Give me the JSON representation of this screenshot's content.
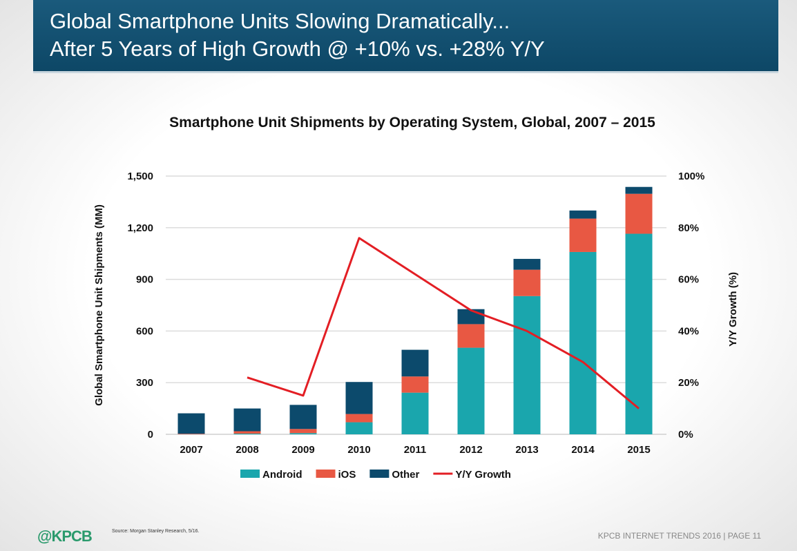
{
  "header": {
    "line1": "Global Smartphone Units Slowing Dramatically...",
    "line2": "After 5 Years of High Growth @ +10% vs. +28% Y/Y"
  },
  "chart_data": {
    "type": "bar",
    "title": "Smartphone Unit Shipments by Operating System, Global, 2007 – 2015",
    "ylabel": "Global Smartphone Unit Shipments (MM)",
    "y2label": "Y/Y Growth (%)",
    "categories": [
      "2007",
      "2008",
      "2009",
      "2010",
      "2011",
      "2012",
      "2013",
      "2014",
      "2015"
    ],
    "ylim": [
      0,
      1500
    ],
    "yticks": [
      "0",
      "300",
      "600",
      "900",
      "1,200",
      "1,500"
    ],
    "y2lim": [
      0,
      100
    ],
    "y2ticks": [
      "0%",
      "20%",
      "40%",
      "60%",
      "80%",
      "100%"
    ],
    "stacked": true,
    "grid": true,
    "legend_position": "bottom",
    "series": [
      {
        "name": "Android",
        "color": "#1aa6ad",
        "values": [
          0,
          4,
          7,
          70,
          242,
          503,
          803,
          1059,
          1165
        ]
      },
      {
        "name": "iOS",
        "color": "#e85843",
        "values": [
          3,
          14,
          24,
          48,
          94,
          137,
          153,
          194,
          232
        ]
      },
      {
        "name": "Other",
        "color": "#0c4a6c",
        "values": [
          119,
          132,
          140,
          186,
          155,
          87,
          63,
          47,
          40
        ]
      },
      {
        "name": "Y/Y Growth",
        "type": "line",
        "axis": "right",
        "color": "#e31e24",
        "values": [
          null,
          22,
          15,
          76,
          62,
          48,
          40,
          28,
          10
        ]
      }
    ]
  },
  "footer": {
    "logo": "@KPCB",
    "source": "Source: Morgan Stanley Research, 5/16.",
    "page": "KPCB INTERNET TRENDS 2016  |  PAGE 11"
  }
}
